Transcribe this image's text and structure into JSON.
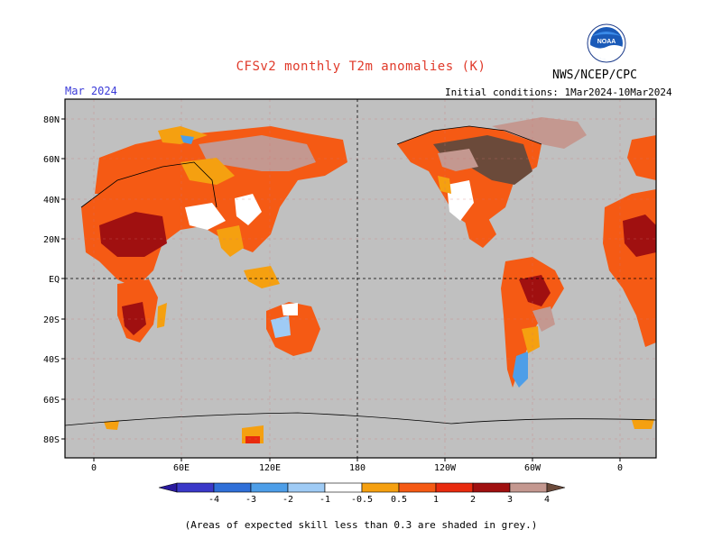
{
  "title": "CFSv2 monthly T2m anomalies (K)",
  "agency": "NWS/NCEP/CPC",
  "month": "Mar 2024",
  "initial_conditions": "Initial conditions: 1Mar2024-10Mar2024",
  "footnote": "(Areas of expected skill less than 0.3 are shaded in grey.)",
  "logo": {
    "text": "NOAA",
    "icon": "noaa-logo"
  },
  "lat_labels": [
    "80N",
    "60N",
    "40N",
    "20N",
    "EQ",
    "20S",
    "40S",
    "60S",
    "80S"
  ],
  "lon_labels": [
    "0",
    "60E",
    "120E",
    "180",
    "120W",
    "60W",
    "0"
  ],
  "colorbar": {
    "labels": [
      "-4",
      "-3",
      "-2",
      "-1",
      "-0.5",
      "0.5",
      "1",
      "2",
      "3",
      "4"
    ],
    "colors": [
      "#2a1a9e",
      "#3a38c8",
      "#2f6fd8",
      "#4d9ee8",
      "#9fcbf5",
      "#ffffff",
      "#f5a010",
      "#f55a14",
      "#e82a0e",
      "#a01010",
      "#c49890",
      "#6b4a3a"
    ]
  },
  "colors": {
    "ocean_grey": "#c0c0c0",
    "land_grey": "#bdbdbd",
    "orange": "#f5a010",
    "red_orange": "#f55a14",
    "red": "#e82a0e",
    "dark_red": "#a01010",
    "tan": "#c49890",
    "brown": "#6b4a3a",
    "light_blue": "#9fcbf5",
    "mid_blue": "#4d9ee8"
  }
}
